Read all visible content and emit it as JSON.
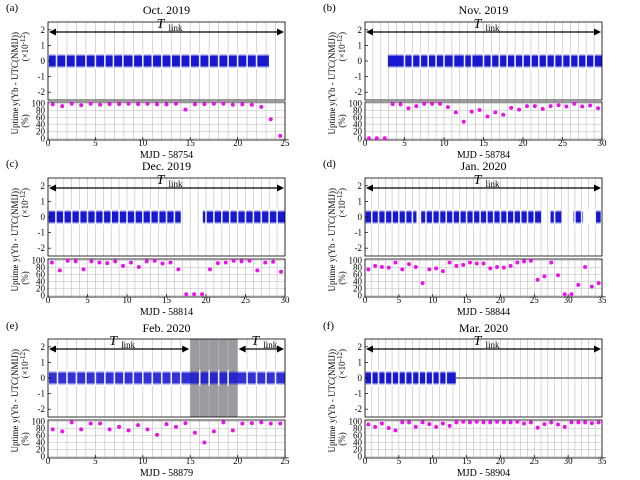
{
  "panels": [
    {
      "id": "a",
      "letter": "(a)",
      "title": "Oct. 2019",
      "xlabel": "MJD - 58754",
      "xlim": [
        0,
        25
      ],
      "xticks": [
        "0",
        "5",
        "10",
        "15",
        "20",
        "25"
      ],
      "segments": [
        [
          0.1,
          23.3
        ]
      ],
      "gaps": [
        0.9,
        1.9,
        2.9,
        4,
        5,
        6,
        6.9,
        7.9,
        9,
        10,
        11,
        12,
        13,
        14,
        15,
        16,
        17,
        18,
        19,
        20,
        21,
        22
      ],
      "shade": null,
      "arrows": [
        {
          "from": 0,
          "to": 25,
          "label": "T",
          "sub": "link"
        }
      ],
      "uptime_x": [
        0.5,
        1.5,
        2.5,
        3.5,
        4.5,
        5.5,
        6.5,
        7.5,
        8.5,
        9.5,
        10.5,
        11.5,
        12.5,
        13.5,
        14.5,
        15.5,
        16.5,
        17.5,
        18.5,
        19.5,
        20.5,
        21.5,
        22.5,
        23.5,
        24.5
      ],
      "uptime": [
        98,
        93,
        100,
        96,
        100,
        97,
        99,
        99,
        100,
        99,
        100,
        98,
        98,
        100,
        83,
        98,
        99,
        100,
        100,
        97,
        98,
        97,
        91,
        55,
        7
      ]
    },
    {
      "id": "b",
      "letter": "(b)",
      "title": "Nov. 2019",
      "xlabel": "MJD - 58784",
      "xlim": [
        0,
        30
      ],
      "xticks": [
        "0",
        "5",
        "10",
        "15",
        "20",
        "25",
        "30"
      ],
      "segments": [
        [
          2.9,
          30
        ]
      ],
      "gaps": [
        5,
        6,
        7,
        8,
        9,
        10,
        11.2,
        12.6,
        13.5,
        15,
        16,
        17,
        18,
        19,
        20,
        21,
        22,
        23,
        24,
        25,
        26,
        27,
        28,
        29
      ],
      "shade": null,
      "arrows": [
        {
          "from": 0,
          "to": 30,
          "label": "T",
          "sub": "link"
        }
      ],
      "uptime_x": [
        0.5,
        1.5,
        2.5,
        3.5,
        4.5,
        5.5,
        6.5,
        7.5,
        8.5,
        9.5,
        10.5,
        11.5,
        12.5,
        13.5,
        14.5,
        15.5,
        16.5,
        17.5,
        18.5,
        19.5,
        20.5,
        21.5,
        22.5,
        23.5,
        24.5,
        25.5,
        26.5,
        27.5,
        28.5,
        29.5
      ],
      "uptime": [
        0,
        0,
        0,
        99,
        98,
        87,
        93,
        100,
        100,
        100,
        90,
        75,
        48,
        77,
        82,
        63,
        75,
        68,
        88,
        83,
        93,
        93,
        85,
        93,
        96,
        92,
        100,
        92,
        95,
        87
      ]
    },
    {
      "id": "c",
      "letter": "(c)",
      "title": "Dec. 2019",
      "xlabel": "MJD - 58814",
      "xlim": [
        0,
        30
      ],
      "xticks": [
        "0",
        "5",
        "10",
        "15",
        "20",
        "25",
        "30"
      ],
      "segments": [
        [
          0.1,
          16.8
        ],
        [
          19.6,
          30
        ]
      ],
      "gaps": [
        1,
        2,
        3,
        4,
        5,
        6,
        7,
        8,
        9,
        10,
        11,
        12,
        13,
        14,
        15,
        16,
        20,
        21,
        22,
        23,
        24,
        25,
        26,
        27,
        28,
        29
      ],
      "shade": null,
      "arrows": [
        {
          "from": 0,
          "to": 30,
          "label": "T",
          "sub": "link"
        }
      ],
      "uptime_x": [
        0.5,
        1.5,
        2.5,
        3.5,
        4.5,
        5.5,
        6.5,
        7.5,
        8.5,
        9.5,
        10.5,
        11.5,
        12.5,
        13.5,
        14.5,
        15.5,
        16.5,
        17.5,
        18.5,
        19.5,
        20.5,
        21.5,
        22.5,
        23.5,
        24.5,
        25.5,
        26.5,
        27.5,
        28.5,
        29.5
      ],
      "uptime": [
        95,
        72,
        100,
        98,
        75,
        98,
        95,
        93,
        98,
        85,
        95,
        82,
        98,
        100,
        92,
        95,
        75,
        3,
        3,
        3,
        75,
        93,
        95,
        100,
        98,
        100,
        72,
        95,
        97,
        68
      ]
    },
    {
      "id": "d",
      "letter": "(d)",
      "title": "Jan. 2020",
      "xlabel": "MJD - 58844",
      "xlim": [
        0,
        35
      ],
      "xticks": [
        "0",
        "5",
        "10",
        "15",
        "20",
        "25",
        "30",
        "35"
      ],
      "segments": [
        [
          0.1,
          7.6
        ],
        [
          8.3,
          26
        ],
        [
          27.4,
          29
        ],
        [
          30.8,
          32.2
        ],
        [
          34,
          34.8
        ]
      ],
      "gaps": [
        1,
        2,
        3,
        4,
        5,
        6,
        7,
        9,
        10,
        11,
        12,
        13,
        14,
        15,
        16,
        17,
        18,
        19,
        20,
        21,
        22,
        23,
        24,
        25,
        28,
        31,
        32,
        33,
        34
      ],
      "shade": null,
      "arrows": [
        {
          "from": 0,
          "to": 35,
          "label": "T",
          "sub": "link"
        }
      ],
      "uptime_x": [
        0.5,
        1.5,
        2.5,
        3.5,
        4.5,
        5.5,
        6.5,
        7.5,
        8.5,
        9.5,
        10.5,
        11.5,
        12.5,
        13.5,
        14.5,
        15.5,
        16.5,
        17.5,
        18.5,
        19.5,
        20.5,
        21.5,
        22.5,
        23.5,
        24.5,
        25.5,
        26.5,
        27.5,
        28.5,
        29.5,
        30.5,
        31.5,
        32.5,
        33.5,
        34.5
      ],
      "uptime": [
        75,
        85,
        82,
        80,
        95,
        75,
        90,
        82,
        35,
        75,
        78,
        70,
        95,
        85,
        88,
        95,
        92,
        92,
        78,
        82,
        80,
        85,
        95,
        98,
        100,
        45,
        55,
        95,
        58,
        3,
        3,
        30,
        82,
        25,
        35
      ]
    },
    {
      "id": "e",
      "letter": "(e)",
      "title": "Feb. 2020",
      "xlabel": "MJD - 58879",
      "xlim": [
        0,
        25
      ],
      "xticks": [
        "0",
        "5",
        "10",
        "15",
        "20",
        "25"
      ],
      "segments": [
        [
          0.1,
          25
        ]
      ],
      "gaps": [
        1,
        2,
        3,
        4,
        5,
        6,
        7,
        8,
        9,
        10,
        11,
        12,
        13,
        14,
        16,
        17,
        18,
        19,
        21,
        22,
        23,
        24
      ],
      "shade": [
        15,
        20
      ],
      "arrows": [
        {
          "from": 0,
          "to": 15,
          "label": "T",
          "sub": "link"
        },
        {
          "from": 20,
          "to": 25,
          "label": "T",
          "sub": "link"
        }
      ],
      "uptime_x": [
        0.5,
        1.5,
        2.5,
        3.5,
        4.5,
        5.5,
        6.5,
        7.5,
        8.5,
        9.5,
        10.5,
        11.5,
        12.5,
        13.5,
        14.5,
        15.5,
        16.5,
        17.5,
        18.5,
        19.5,
        20.5,
        21.5,
        22.5,
        23.5,
        24.5
      ],
      "uptime": [
        78,
        72,
        98,
        78,
        95,
        95,
        78,
        85,
        75,
        90,
        78,
        62,
        93,
        85,
        96,
        68,
        40,
        72,
        98,
        75,
        95,
        96,
        98,
        95,
        95
      ]
    },
    {
      "id": "f",
      "letter": "(f)",
      "title": "Mar. 2020",
      "xlabel": "MJD - 58904",
      "xlim": [
        0,
        35
      ],
      "xticks": [
        "0",
        "5",
        "10",
        "15",
        "20",
        "25",
        "30",
        "35"
      ],
      "segments": [
        [
          0.1,
          13.4
        ]
      ],
      "gaps": [
        1,
        2,
        3,
        4,
        5,
        6,
        7,
        8,
        9,
        10,
        11,
        12
      ],
      "grey": [
        13.4,
        35
      ],
      "shade": null,
      "arrows": [
        {
          "from": 0,
          "to": 35,
          "label": "T",
          "sub": "link"
        }
      ],
      "uptime_x": [
        0.5,
        1.5,
        2.5,
        3.5,
        4.5,
        5.5,
        6.5,
        7.5,
        8.5,
        9.5,
        10.5,
        11.5,
        12.5,
        13.5,
        14.5,
        15.5,
        16.5,
        17.5,
        18.5,
        19.5,
        20.5,
        21.5,
        22.5,
        23.5,
        24.5,
        25.5,
        26.5,
        27.5,
        28.5,
        29.5,
        30.5,
        31.5,
        32.5,
        33.5,
        34.5
      ],
      "uptime": [
        92,
        85,
        95,
        82,
        75,
        98,
        98,
        85,
        98,
        93,
        85,
        95,
        88,
        98,
        100,
        98,
        100,
        98,
        98,
        100,
        98,
        98,
        100,
        95,
        98,
        83,
        93,
        98,
        92,
        85,
        98,
        98,
        98,
        96,
        98
      ]
    }
  ],
  "common": {
    "ylabel_top": "y(Yb - UTC(NMIJ))",
    "ylabel_top_unit": "(×10",
    "ylabel_top_exp": "-12",
    "ylabel_top_close": ")",
    "ylabel_bottom": "Uptime",
    "ylabel_bottom_unit": "(%)",
    "yticks_top": [
      "2",
      "1",
      "0",
      "-1",
      "-2"
    ],
    "yticks_bottom": [
      "100",
      "80",
      "60",
      "40",
      "20",
      "0"
    ]
  },
  "colors": {
    "band": "#1818d0",
    "uptime": "#e815e8",
    "shade": "#9a9aa0",
    "grid": "#bcbcbc",
    "greyband": "#8c8c8c"
  }
}
